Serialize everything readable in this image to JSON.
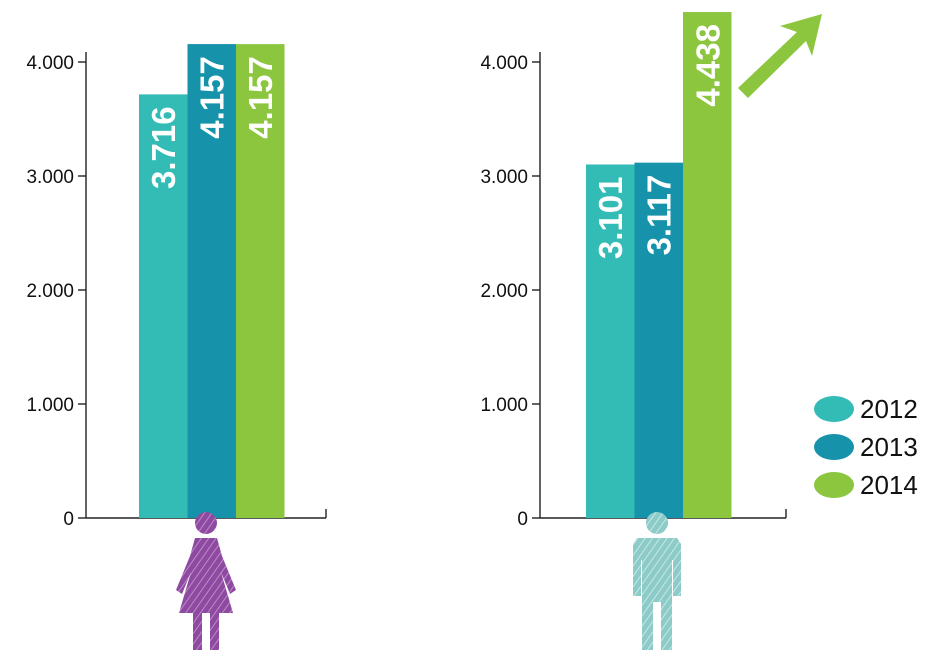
{
  "colors": {
    "2012": "#33bcb5",
    "2013": "#1692ab",
    "2014": "#8cc63f",
    "female_icon": "#8e4aa0",
    "male_icon": "#93cfcb",
    "arrow": "#8cc63f"
  },
  "chart_data": [
    {
      "type": "bar",
      "icon": "female-figure-icon",
      "y_ticks": [
        "0",
        "1.000",
        "2.000",
        "3.000",
        "4.000"
      ],
      "ylim": [
        0,
        4000
      ],
      "categories": [
        "2012",
        "2013",
        "2014"
      ],
      "values": [
        3716,
        4157,
        4157
      ],
      "value_labels": [
        "3.716",
        "4.157",
        "4.157"
      ]
    },
    {
      "type": "bar",
      "icon": "male-figure-icon",
      "y_ticks": [
        "0",
        "1.000",
        "2.000",
        "3.000",
        "4.000"
      ],
      "ylim": [
        0,
        4000
      ],
      "categories": [
        "2012",
        "2013",
        "2014"
      ],
      "values": [
        3101,
        3117,
        4438
      ],
      "value_labels": [
        "3.101",
        "3.117",
        "4.438"
      ],
      "annotation": "up-arrow-icon"
    }
  ],
  "legend": {
    "items": [
      {
        "label": "2012",
        "color": "#33bcb5"
      },
      {
        "label": "2013",
        "color": "#1692ab"
      },
      {
        "label": "2014",
        "color": "#8cc63f"
      }
    ]
  }
}
